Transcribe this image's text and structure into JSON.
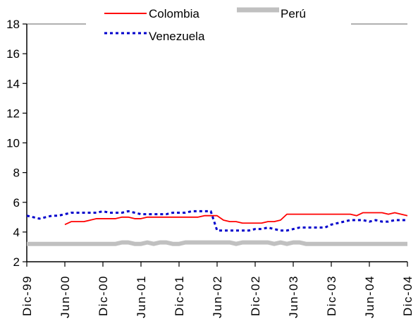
{
  "chart_data": {
    "type": "line",
    "title": "",
    "xlabel": "",
    "ylabel": "",
    "ylim": [
      2,
      18
    ],
    "yticks": [
      2,
      4,
      6,
      8,
      10,
      12,
      14,
      16,
      18
    ],
    "x_tick_labels": [
      "Dic-99",
      "Jun-00",
      "Dic-00",
      "Jun-01",
      "Dic-01",
      "Jun-02",
      "Dic-02",
      "Jun-03",
      "Dic-03",
      "Jun-04",
      "Dic-04"
    ],
    "x": [
      "Dic-99",
      "Ene-00",
      "Feb-00",
      "Mar-00",
      "Abr-00",
      "May-00",
      "Jun-00",
      "Jul-00",
      "Ago-00",
      "Sep-00",
      "Oct-00",
      "Nov-00",
      "Dic-00",
      "Ene-01",
      "Feb-01",
      "Mar-01",
      "Abr-01",
      "May-01",
      "Jun-01",
      "Jul-01",
      "Ago-01",
      "Sep-01",
      "Oct-01",
      "Nov-01",
      "Dic-01",
      "Ene-02",
      "Feb-02",
      "Mar-02",
      "Abr-02",
      "May-02",
      "Jun-02",
      "Jul-02",
      "Ago-02",
      "Sep-02",
      "Oct-02",
      "Nov-02",
      "Dic-02",
      "Ene-03",
      "Feb-03",
      "Mar-03",
      "Abr-03",
      "May-03",
      "Jun-03",
      "Jul-03",
      "Ago-03",
      "Sep-03",
      "Oct-03",
      "Nov-03",
      "Dic-03",
      "Ene-04",
      "Feb-04",
      "Mar-04",
      "Abr-04",
      "May-04",
      "Jun-04",
      "Jul-04",
      "Ago-04",
      "Sep-04",
      "Oct-04",
      "Nov-04",
      "Dic-04"
    ],
    "legend_position": "top",
    "grid": false,
    "series": [
      {
        "name": "Colombia",
        "color": "#ff0000",
        "style": "solid",
        "values": [
          null,
          null,
          null,
          null,
          null,
          null,
          4.5,
          4.7,
          4.7,
          4.7,
          4.8,
          4.9,
          4.9,
          4.9,
          4.9,
          5.0,
          5.0,
          4.9,
          4.9,
          5.0,
          5.0,
          5.0,
          5.0,
          5.0,
          5.0,
          5.0,
          5.0,
          5.0,
          5.1,
          5.1,
          5.1,
          4.8,
          4.7,
          4.7,
          4.6,
          4.6,
          4.6,
          4.6,
          4.7,
          4.7,
          4.8,
          5.2,
          5.2,
          5.2,
          5.2,
          5.2,
          5.2,
          5.2,
          5.2,
          5.2,
          5.2,
          5.2,
          5.1,
          5.3,
          5.3,
          5.3,
          5.3,
          5.2,
          5.3,
          5.2,
          5.1
        ]
      },
      {
        "name": "Perú",
        "color": "#c0c0c0",
        "style": "thick",
        "values": [
          3.2,
          3.2,
          3.2,
          3.2,
          3.2,
          3.2,
          3.2,
          3.2,
          3.2,
          3.2,
          3.2,
          3.2,
          3.2,
          3.2,
          3.2,
          3.3,
          3.3,
          3.2,
          3.2,
          3.3,
          3.2,
          3.3,
          3.3,
          3.2,
          3.2,
          3.3,
          3.3,
          3.3,
          3.3,
          3.3,
          3.3,
          3.3,
          3.3,
          3.2,
          3.3,
          3.3,
          3.3,
          3.3,
          3.3,
          3.2,
          3.3,
          3.2,
          3.3,
          3.3,
          3.2,
          3.2,
          3.2,
          3.2,
          3.2,
          3.2,
          3.2,
          3.2,
          3.2,
          3.2,
          3.2,
          3.2,
          3.2,
          3.2,
          3.2,
          3.2,
          3.2
        ]
      },
      {
        "name": "Venezuela",
        "color": "#0000cc",
        "style": "dotted",
        "values": [
          5.1,
          5.0,
          4.9,
          5.0,
          5.1,
          5.1,
          5.2,
          5.3,
          5.3,
          5.3,
          5.3,
          5.3,
          5.4,
          5.3,
          5.3,
          5.3,
          5.4,
          5.3,
          5.2,
          5.2,
          5.2,
          5.2,
          5.2,
          5.3,
          5.3,
          5.3,
          5.4,
          5.4,
          5.4,
          5.4,
          4.1,
          4.1,
          4.1,
          4.1,
          4.1,
          4.1,
          4.2,
          4.2,
          4.3,
          4.2,
          4.1,
          4.1,
          4.2,
          4.3,
          4.3,
          4.3,
          4.3,
          4.3,
          4.5,
          4.6,
          4.7,
          4.8,
          4.8,
          4.8,
          4.7,
          4.8,
          4.7,
          4.7,
          4.8,
          4.8,
          4.8
        ]
      }
    ]
  }
}
